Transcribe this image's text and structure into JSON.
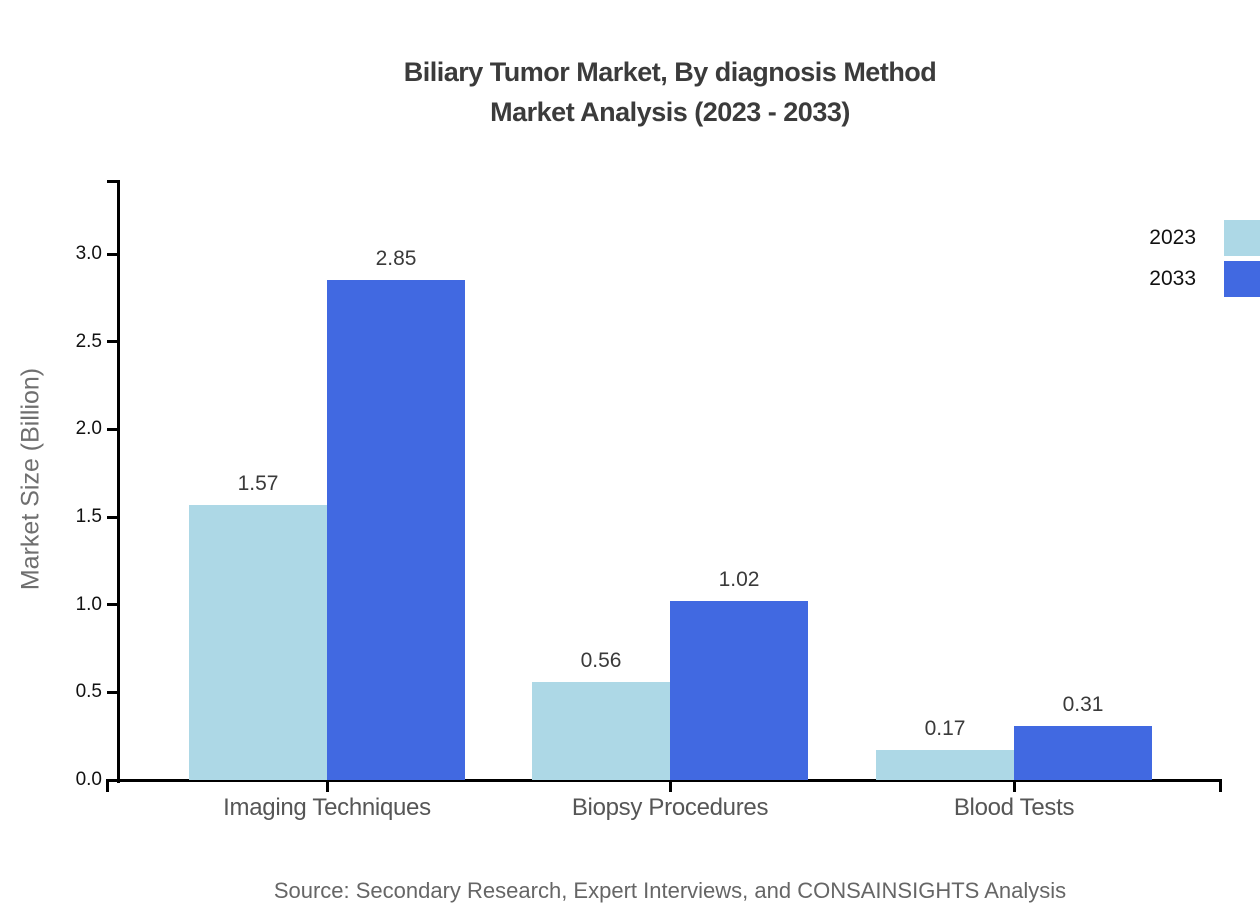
{
  "title": {
    "line1": "Biliary Tumor Market, By diagnosis Method",
    "line2": "Market Analysis (2023 - 2033)"
  },
  "source": "Source: Secondary Research, Expert Interviews, and CONSAINSIGHTS Analysis",
  "chart_data": {
    "type": "bar",
    "title": "Biliary Tumor Market, By diagnosis Method Market Analysis (2023 - 2033)",
    "categories": [
      "Imaging Techniques",
      "Biopsy Procedures",
      "Blood Tests"
    ],
    "series": [
      {
        "name": "2023",
        "color": "#ADD8E6",
        "values": [
          1.57,
          0.56,
          0.17
        ]
      },
      {
        "name": "2033",
        "color": "#4169E1",
        "values": [
          2.85,
          1.02,
          0.31
        ]
      }
    ],
    "xlabel": "",
    "ylabel": "Market Size (Billion)",
    "ylim": [
      0,
      3.42
    ],
    "yticks": [
      0.0,
      0.5,
      1.0,
      1.5,
      2.0,
      2.5,
      3.0
    ],
    "grid": false,
    "legend_position": "top-right",
    "value_labels": true,
    "axis_color": "#000000",
    "value_label_color": "#3a3a3a",
    "tick_label_color": "#111111",
    "category_label_color": "#565656",
    "title_color": "#3b3b3b",
    "source_color": "#666666",
    "ylabel_color": "#6f6f6f"
  }
}
